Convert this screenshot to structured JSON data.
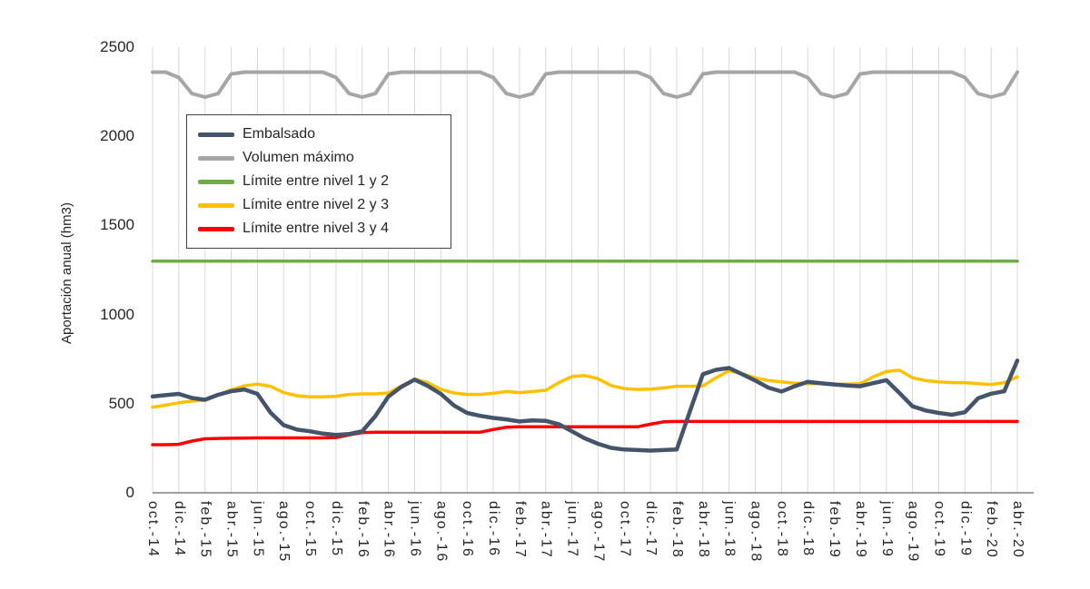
{
  "chart_data": {
    "type": "line",
    "title": "",
    "ylabel": "Aportación anual (hm3)",
    "xlabel": "",
    "ylim": [
      0,
      2500
    ],
    "yticks": [
      0,
      500,
      1000,
      1500,
      2000,
      2500
    ],
    "grid": "vertical",
    "grid_color": "#D9D9D9",
    "axis_color": "#7F7F7F",
    "text_color": "#262626",
    "legend_position": "top-left-inside",
    "points_per_tick": 2,
    "x_tick_labels": [
      "oct.-14",
      "dic.-14",
      "feb.-15",
      "abr.-15",
      "jun.-15",
      "ago.-15",
      "oct.-15",
      "dic.-15",
      "feb.-16",
      "abr.-16",
      "jun.-16",
      "ago.-16",
      "oct.-16",
      "dic.-16",
      "feb.-17",
      "abr.-17",
      "jun.-17",
      "ago.-17",
      "oct.-17",
      "dic.-17",
      "feb.-18",
      "abr.-18",
      "jun.-18",
      "ago.-18",
      "oct.-18",
      "dic.-18",
      "feb.-19",
      "abr.-19",
      "jun.-19",
      "ago.-19",
      "oct.-19",
      "dic.-19",
      "feb.-20",
      "abr.-20"
    ],
    "series": [
      {
        "name": "Embalsado",
        "color": "#44546A",
        "width": 4.5,
        "values": [
          540,
          548,
          555,
          532,
          522,
          550,
          570,
          580,
          555,
          450,
          380,
          355,
          345,
          332,
          325,
          330,
          345,
          430,
          540,
          595,
          635,
          600,
          555,
          490,
          448,
          432,
          420,
          412,
          400,
          406,
          404,
          385,
          345,
          305,
          275,
          252,
          243,
          240,
          237,
          240,
          243,
          455,
          665,
          690,
          700,
          665,
          630,
          590,
          568,
          598,
          622,
          615,
          608,
          602,
          598,
          615,
          632,
          560,
          485,
          462,
          448,
          438,
          452,
          530,
          556,
          570,
          742
        ]
      },
      {
        "name": "Volumen máximo",
        "color": "#A6A6A6",
        "width": 4,
        "values": [
          2360,
          2360,
          2330,
          2240,
          2220,
          2240,
          2350,
          2360,
          2360,
          2360,
          2360,
          2360,
          2360,
          2360,
          2330,
          2240,
          2220,
          2240,
          2350,
          2360,
          2360,
          2360,
          2360,
          2360,
          2360,
          2360,
          2330,
          2240,
          2220,
          2240,
          2350,
          2360,
          2360,
          2360,
          2360,
          2360,
          2360,
          2360,
          2330,
          2240,
          2220,
          2240,
          2350,
          2360,
          2360,
          2360,
          2360,
          2360,
          2360,
          2360,
          2330,
          2240,
          2220,
          2240,
          2350,
          2360,
          2360,
          2360,
          2360,
          2360,
          2360,
          2360,
          2330,
          2240,
          2220,
          2240,
          2360
        ]
      },
      {
        "name": "Límite entre nivel 1 y 2",
        "color": "#70AD47",
        "width": 3.5,
        "values": [
          1300,
          1300,
          1300,
          1300,
          1300,
          1300,
          1300,
          1300,
          1300,
          1300,
          1300,
          1300,
          1300,
          1300,
          1300,
          1300,
          1300,
          1300,
          1300,
          1300,
          1300,
          1300,
          1300,
          1300,
          1300,
          1300,
          1300,
          1300,
          1300,
          1300,
          1300,
          1300,
          1300,
          1300,
          1300,
          1300,
          1300,
          1300,
          1300,
          1300,
          1300,
          1300,
          1300,
          1300,
          1300,
          1300,
          1300,
          1300,
          1300,
          1300,
          1300,
          1300,
          1300,
          1300,
          1300,
          1300,
          1300,
          1300,
          1300,
          1300,
          1300,
          1300,
          1300,
          1300,
          1300,
          1300,
          1300
        ]
      },
      {
        "name": "Límite entre nivel 2 y 3",
        "color": "#FFC000",
        "width": 3.5,
        "values": [
          480,
          492,
          505,
          515,
          520,
          548,
          578,
          600,
          610,
          598,
          562,
          545,
          538,
          538,
          542,
          552,
          555,
          555,
          560,
          600,
          638,
          618,
          580,
          560,
          552,
          552,
          558,
          568,
          562,
          568,
          575,
          618,
          652,
          658,
          640,
          602,
          585,
          580,
          582,
          588,
          598,
          598,
          600,
          645,
          685,
          668,
          645,
          630,
          622,
          615,
          612,
          612,
          608,
          610,
          612,
          650,
          680,
          688,
          645,
          630,
          622,
          618,
          618,
          612,
          608,
          618,
          650
        ]
      },
      {
        "name": "Límite entre nivel 3 y 4",
        "color": "#FF0000",
        "width": 3.5,
        "values": [
          270,
          270,
          272,
          290,
          303,
          305,
          306,
          307,
          308,
          308,
          308,
          308,
          308,
          308,
          310,
          325,
          338,
          340,
          340,
          340,
          340,
          340,
          340,
          340,
          340,
          340,
          355,
          368,
          370,
          370,
          370,
          370,
          370,
          370,
          370,
          370,
          370,
          370,
          385,
          398,
          400,
          400,
          400,
          400,
          400,
          400,
          400,
          400,
          400,
          400,
          400,
          400,
          400,
          400,
          400,
          400,
          400,
          400,
          400,
          400,
          400,
          400,
          400,
          400,
          400,
          400,
          400
        ]
      }
    ]
  }
}
